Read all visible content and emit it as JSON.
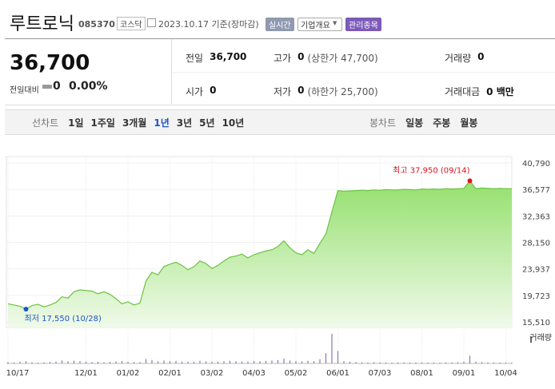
{
  "header": {
    "name": "루트로닉",
    "code": "085370",
    "market": "코스닥",
    "date": "2023.10.17 기준(장마감)",
    "badges": [
      "실시간",
      "기업개요",
      "관리종목"
    ]
  },
  "price": {
    "current": "36,700",
    "change_label": "전일대비",
    "change": "0",
    "rate": "0.00%"
  },
  "stats": [
    [
      {
        "label": "전일",
        "value": "36,700"
      },
      {
        "label": "고가",
        "value": "0",
        "note": "(상한가 47,700)"
      },
      {
        "label": "거래량",
        "value": "0"
      }
    ],
    [
      {
        "label": "시가",
        "value": "0"
      },
      {
        "label": "저가",
        "value": "0",
        "note": "(하한가 25,700)"
      },
      {
        "label": "거래대금",
        "value": "0 백만"
      }
    ]
  ],
  "tabs": {
    "line_label": "선차트",
    "line_options": [
      "1일",
      "1주일",
      "3개월",
      "1년",
      "3년",
      "5년",
      "10년"
    ],
    "selected": 3,
    "candle_label": "봉차트",
    "candle_options": [
      "일봉",
      "주봉",
      "월봉"
    ]
  },
  "chart": {
    "type": "line",
    "color": "#6cc33f",
    "grid": true,
    "categories": [
      "10/17",
      null,
      null,
      null,
      null,
      null,
      null,
      null,
      null,
      null,
      null,
      null,
      null,
      "12/01",
      null,
      null,
      null,
      null,
      null,
      null,
      "01/02",
      null,
      null,
      null,
      null,
      null,
      null,
      "02/01",
      null,
      null,
      null,
      null,
      null,
      null,
      "03/02",
      null,
      null,
      null,
      null,
      null,
      null,
      "04/03",
      null,
      null,
      null,
      null,
      null,
      null,
      "05/02",
      null,
      null,
      null,
      null,
      null,
      null,
      "06/01",
      null,
      null,
      null,
      null,
      null,
      null,
      "07/03",
      null,
      null,
      null,
      null,
      null,
      null,
      "08/01",
      null,
      null,
      null,
      null,
      null,
      null,
      "09/01",
      null,
      null,
      null,
      null,
      null,
      null,
      "10/04",
      null
    ],
    "values": [
      18400,
      18200,
      18000,
      17550,
      18100,
      18300,
      17900,
      18200,
      18600,
      19500,
      19300,
      20300,
      20600,
      20500,
      20400,
      20000,
      20300,
      19900,
      19200,
      18400,
      18700,
      18200,
      18500,
      22000,
      23400,
      23000,
      24300,
      24700,
      25000,
      24500,
      23800,
      24300,
      25200,
      24800,
      24000,
      24500,
      25200,
      25800,
      26000,
      26300,
      25700,
      26200,
      26500,
      26800,
      27000,
      27500,
      28400,
      27300,
      26500,
      26200,
      27000,
      26400,
      28000,
      29500,
      33000,
      36400,
      36300,
      36350,
      36400,
      36450,
      36400,
      36500,
      36450,
      36550,
      36500,
      36500,
      36600,
      36550,
      36500,
      36650,
      36600,
      36650,
      36600,
      36700,
      36650,
      36700,
      36750,
      37950,
      36700,
      36800,
      36750,
      36700,
      36750,
      36700,
      36700
    ],
    "volume": [
      120,
      90,
      150,
      200,
      110,
      80,
      100,
      130,
      160,
      260,
      180,
      240,
      200,
      150,
      120,
      140,
      110,
      130,
      170,
      220,
      140,
      120,
      110,
      380,
      300,
      180,
      260,
      200,
      220,
      160,
      150,
      140,
      230,
      180,
      160,
      150,
      200,
      240,
      190,
      170,
      160,
      210,
      190,
      230,
      260,
      300,
      420,
      260,
      200,
      190,
      230,
      210,
      380,
      900,
      2600,
      1100,
      200,
      150,
      120,
      100,
      90,
      110,
      100,
      90,
      80,
      100,
      90,
      80,
      90,
      100,
      80,
      90,
      80,
      100,
      90,
      110,
      160,
      700,
      150,
      120,
      100,
      90,
      80,
      90,
      80
    ],
    "volume_label": "거래량",
    "ylim": [
      15510,
      40790
    ],
    "yticks": [
      {
        "value": 40790,
        "label": "40,790"
      },
      {
        "value": 36577,
        "label": "36,577"
      },
      {
        "value": 32363,
        "label": "32,363"
      },
      {
        "value": 28150,
        "label": "28,150"
      },
      {
        "value": 23937,
        "label": "23,937"
      },
      {
        "value": 19723,
        "label": "19,723"
      },
      {
        "value": 15510,
        "label": "15,510"
      }
    ],
    "annotations": {
      "high": "최고 37,950 (09/14)",
      "low": "최저 17,550 (10/28)"
    }
  }
}
